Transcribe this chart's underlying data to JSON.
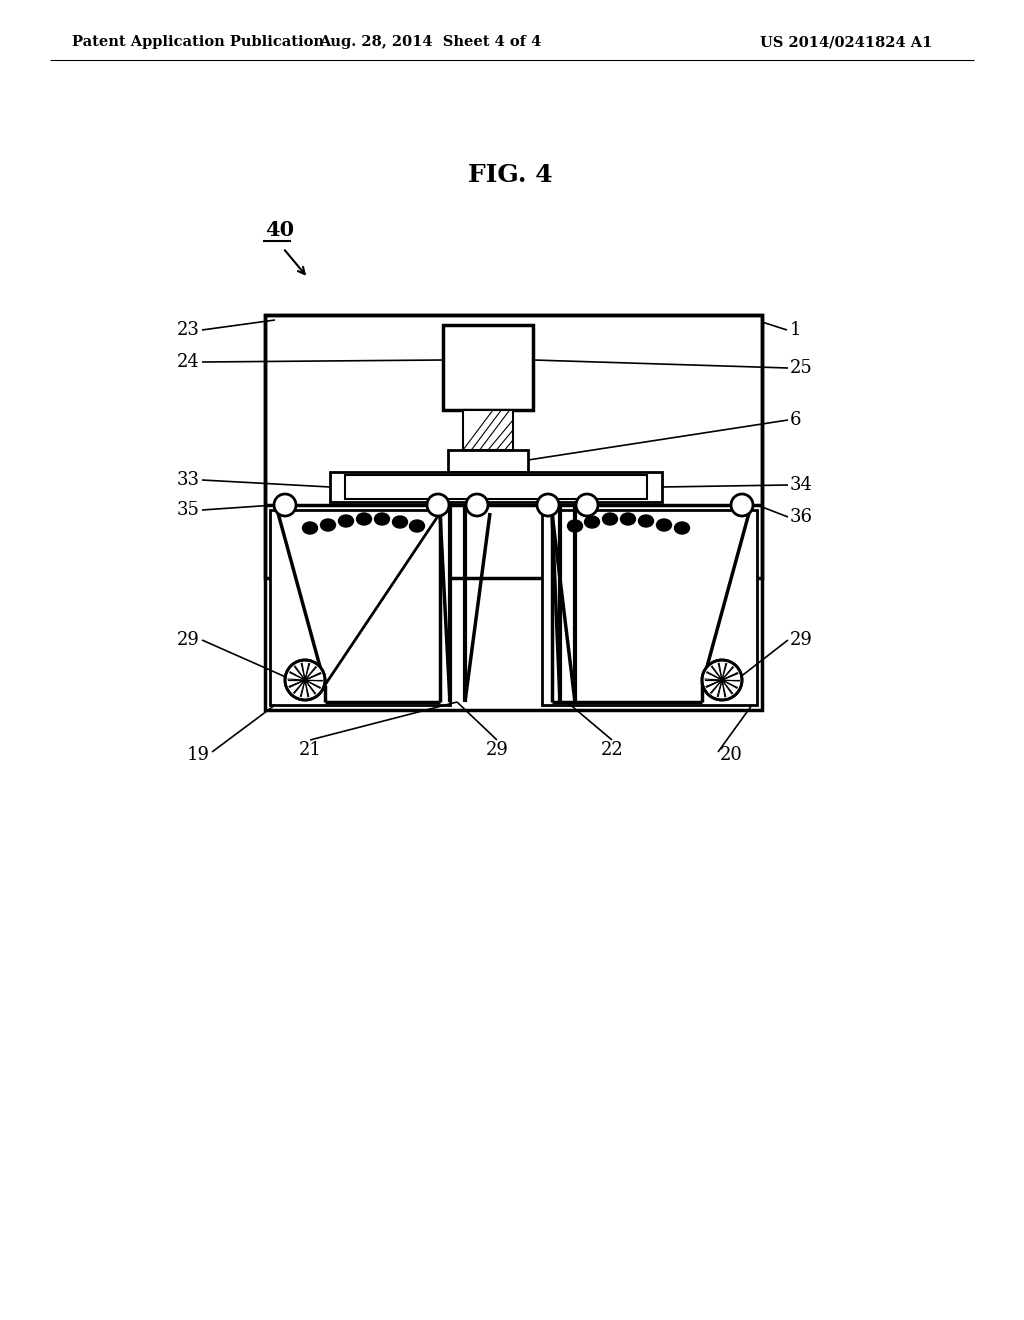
{
  "background_color": "#ffffff",
  "header_left": "Patent Application Publication",
  "header_center": "Aug. 28, 2014  Sheet 4 of 4",
  "header_right": "US 2014/0241824 A1",
  "fig_label": "FIG. 4"
}
